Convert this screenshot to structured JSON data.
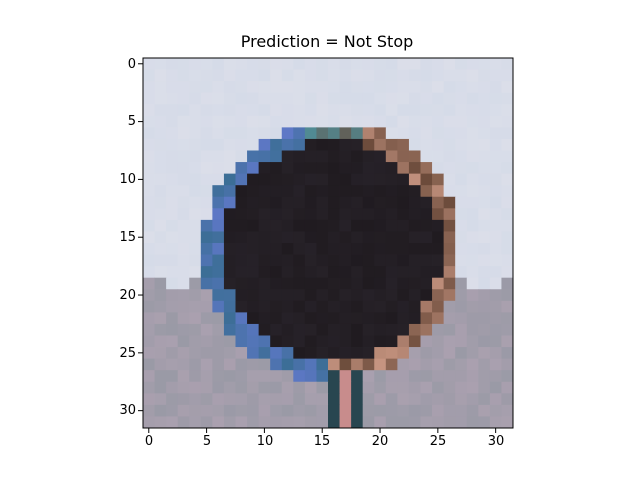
{
  "title": "Prediction = Not Stop",
  "image": {
    "rows": 32,
    "cols": 32,
    "subject": "dark circular traffic sign, grey-blue sky background, buildings below",
    "colors": {
      "sky": "#d5dbe8",
      "sign_face": "#201b20",
      "sign_rim": "#6a4a3a",
      "ground": "#9a9aa6"
    }
  },
  "axes": {
    "x_ticks": [
      "0",
      "5",
      "10",
      "15",
      "20",
      "25",
      "30"
    ],
    "y_ticks": [
      "0",
      "5",
      "10",
      "15",
      "20",
      "25",
      "30"
    ],
    "x_range": [
      -0.5,
      31.5
    ],
    "y_range": [
      -0.5,
      31.5
    ]
  }
}
